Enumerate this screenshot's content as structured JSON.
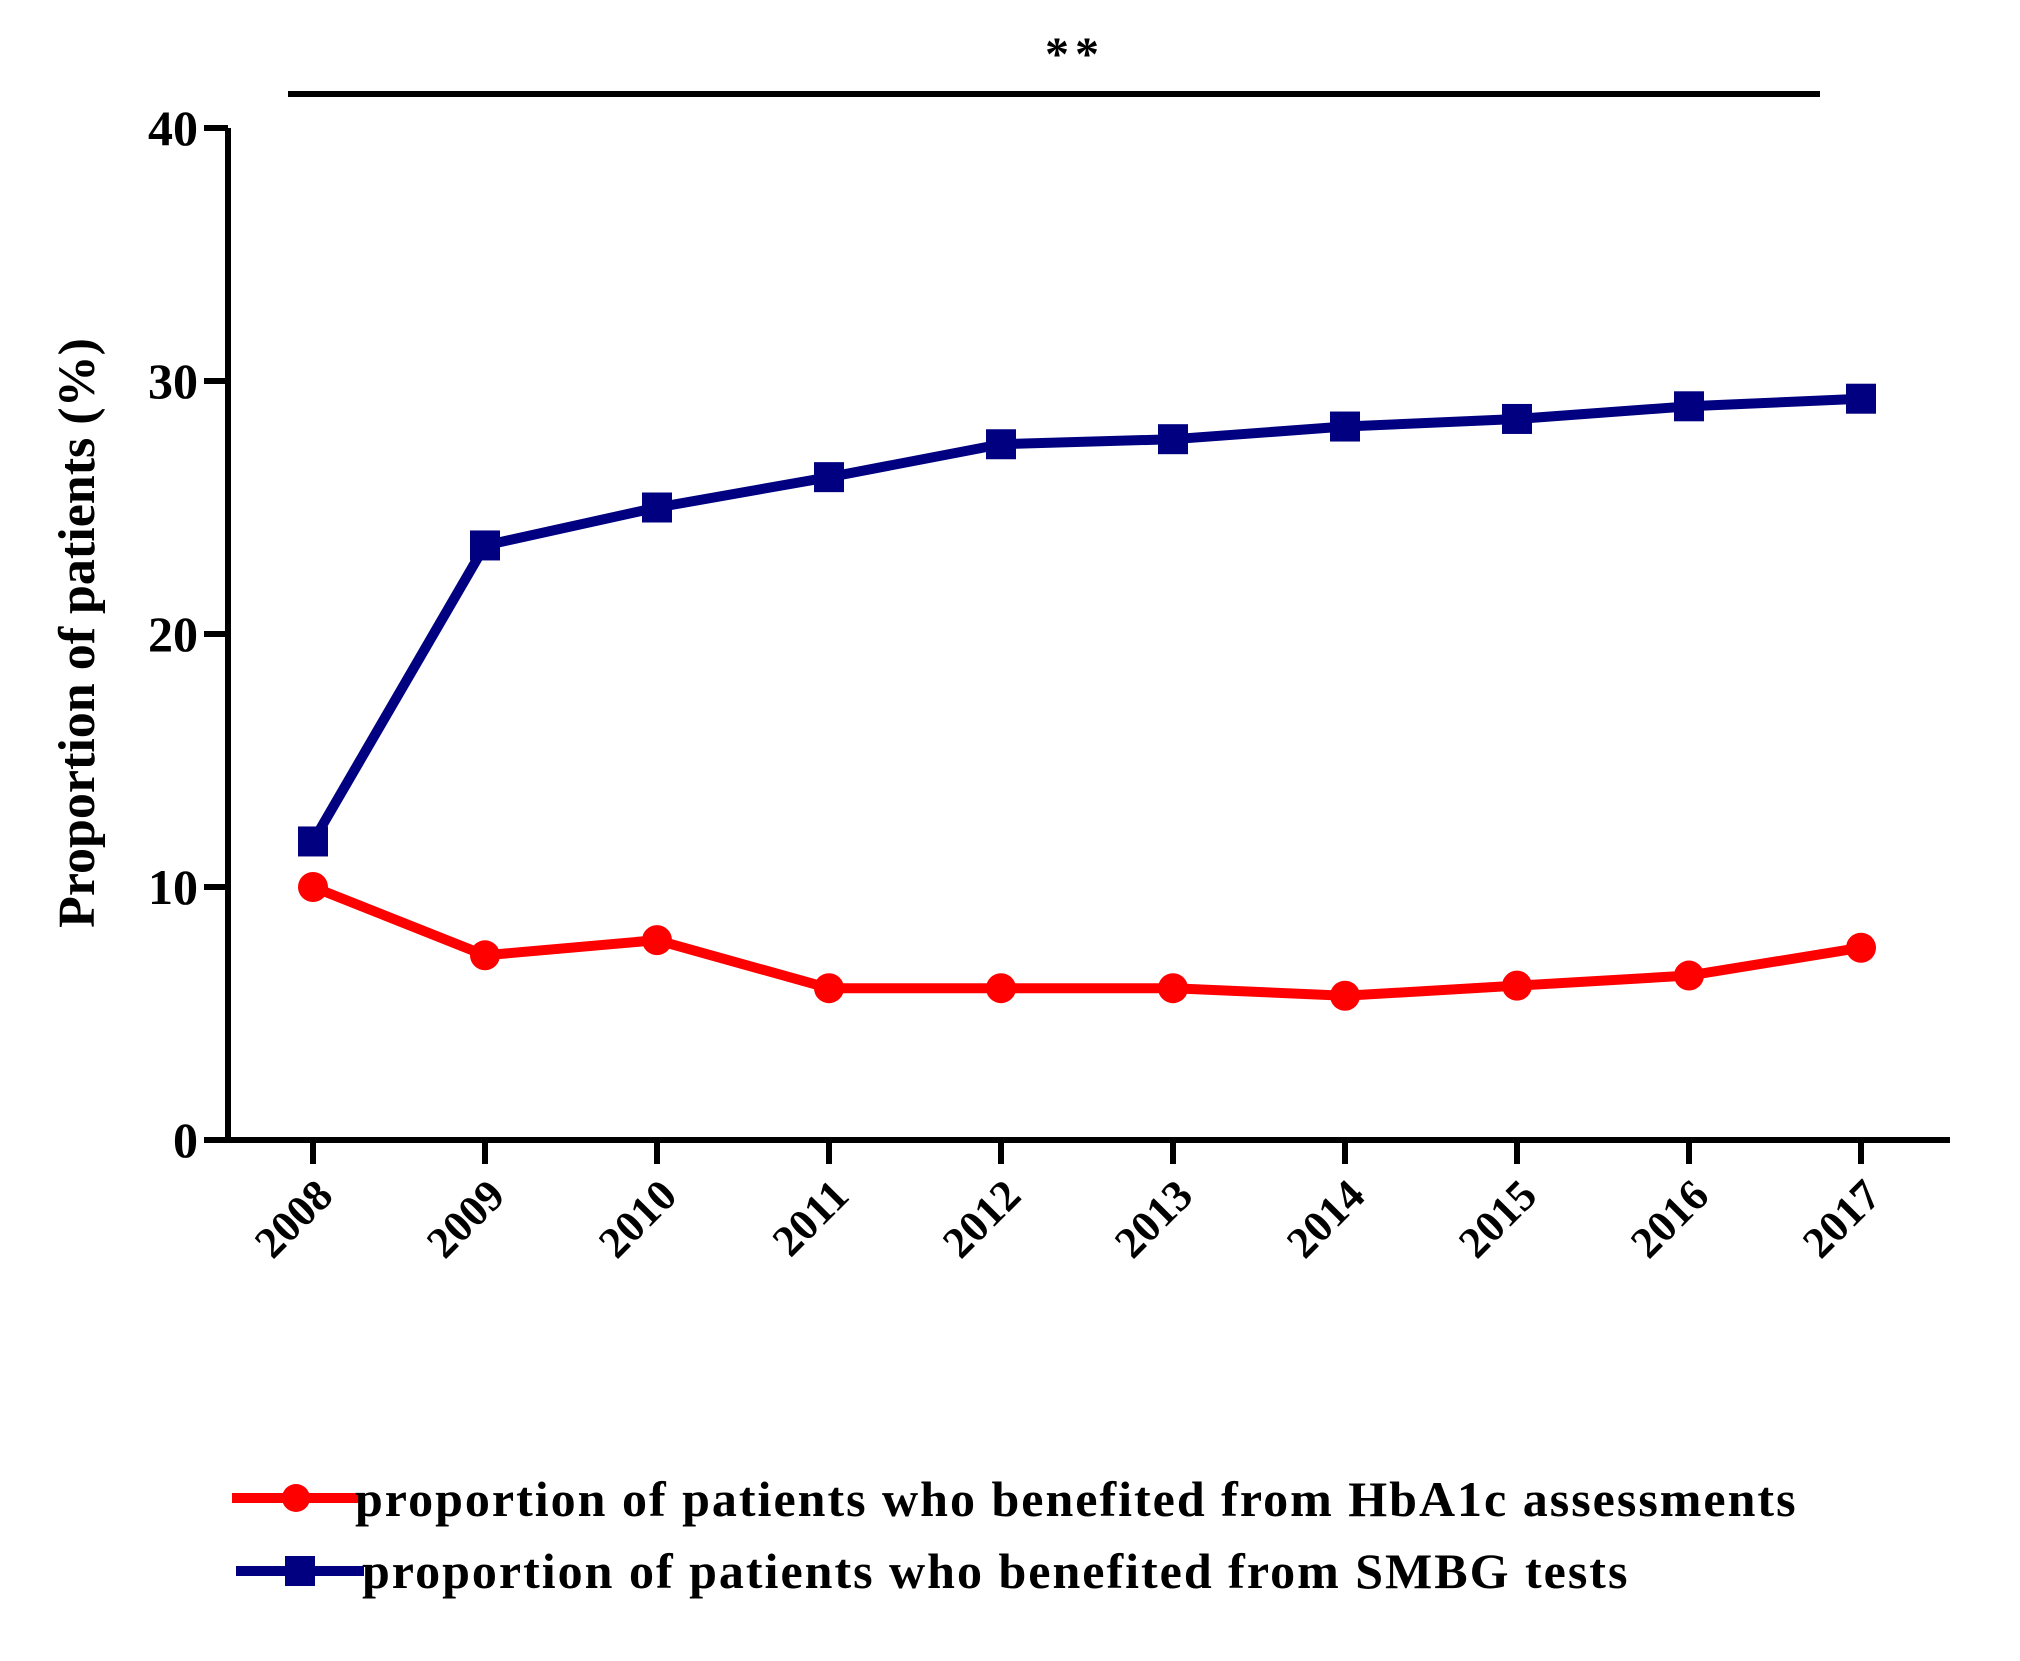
{
  "chart_data": {
    "type": "line",
    "title": "",
    "xlabel": "",
    "ylabel": "Proportion of patients (%)",
    "ylim": [
      0,
      40
    ],
    "yticks": [
      0,
      10,
      20,
      30,
      40
    ],
    "categories": [
      "2008",
      "2009",
      "2010",
      "2011",
      "2012",
      "2013",
      "2014",
      "2015",
      "2016",
      "2017"
    ],
    "series": [
      {
        "name": "proportion of patients who benefited from HbA1c assessments",
        "marker": "circle",
        "color": "#ff0000",
        "values": [
          10.0,
          7.3,
          7.9,
          6.0,
          6.0,
          6.0,
          5.7,
          6.1,
          6.5,
          7.6
        ]
      },
      {
        "name": "proportion of  patients who benefited from SMBG tests",
        "marker": "square",
        "color": "#000080",
        "values": [
          11.8,
          23.5,
          25.0,
          26.2,
          27.5,
          27.7,
          28.2,
          28.5,
          29.0,
          29.3
        ]
      }
    ],
    "annotation": {
      "text": "**",
      "from": "2008",
      "to": "2017"
    },
    "legend_position": "bottom"
  }
}
